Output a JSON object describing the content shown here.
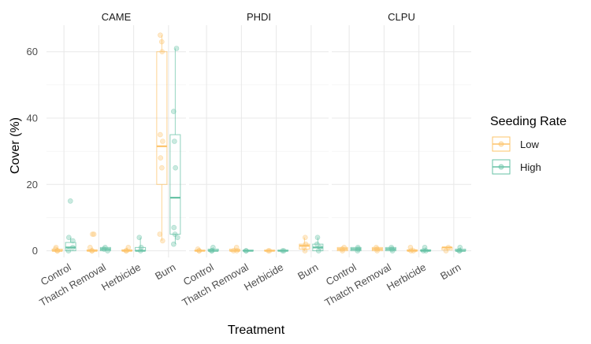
{
  "chart_data": {
    "type": "boxplot",
    "facets": [
      "CAME",
      "PHDI",
      "CLPU"
    ],
    "categories": [
      "Control",
      "Thatch Removal",
      "Herbicide",
      "Burn"
    ],
    "xlabel": "Treatment",
    "ylabel": "Cover (%)",
    "ylim": [
      -2,
      68
    ],
    "yticks": [
      0,
      20,
      40,
      60
    ],
    "grid": true,
    "legend": {
      "title": "Seeding Rate",
      "position": "right",
      "entries": [
        {
          "name": "Low",
          "color": "#FDC46B"
        },
        {
          "name": "High",
          "color": "#66C2A5"
        }
      ]
    },
    "series": [
      {
        "name": "Low",
        "color": "#FDC46B",
        "facets": {
          "CAME": [
            {
              "q1": 0,
              "median": 0,
              "q3": 0.5,
              "min": 0,
              "max": 1,
              "points": [
                0,
                0,
                0.5,
                1
              ]
            },
            {
              "q1": 0,
              "median": 0,
              "q3": 0.3,
              "min": 0,
              "max": 1,
              "points": [
                0,
                0,
                1,
                5,
                5
              ]
            },
            {
              "q1": 0,
              "median": 0,
              "q3": 0.3,
              "min": 0,
              "max": 1,
              "points": [
                0,
                0,
                1
              ]
            },
            {
              "q1": 20,
              "median": 31.5,
              "q3": 60,
              "min": 3,
              "max": 65,
              "points": [
                3,
                5,
                25,
                28,
                33,
                35,
                60,
                63,
                65
              ]
            }
          ],
          "PHDI": [
            {
              "q1": 0,
              "median": 0,
              "q3": 0.2,
              "min": 0,
              "max": 0.5,
              "points": [
                0,
                0,
                0.5
              ]
            },
            {
              "q1": 0,
              "median": 0,
              "q3": 0.5,
              "min": 0,
              "max": 1,
              "points": [
                0,
                0,
                1
              ]
            },
            {
              "q1": 0,
              "median": 0,
              "q3": 0.2,
              "min": 0,
              "max": 0.3,
              "points": [
                0,
                0
              ]
            },
            {
              "q1": 0.5,
              "median": 1.5,
              "q3": 2,
              "min": 0,
              "max": 4,
              "points": [
                0,
                1,
                2,
                4
              ]
            }
          ],
          "CLPU": [
            {
              "q1": 0,
              "median": 0.5,
              "q3": 1,
              "min": 0,
              "max": 1,
              "points": [
                0,
                0.5,
                1
              ]
            },
            {
              "q1": 0,
              "median": 0.5,
              "q3": 1,
              "min": 0,
              "max": 1,
              "points": [
                0,
                0.5,
                1
              ]
            },
            {
              "q1": 0,
              "median": 0,
              "q3": 0.3,
              "min": 0,
              "max": 1,
              "points": [
                0,
                0,
                1
              ]
            },
            {
              "q1": 0.3,
              "median": 1,
              "q3": 1,
              "min": 0,
              "max": 1,
              "points": [
                0,
                1
              ]
            }
          ]
        }
      },
      {
        "name": "High",
        "color": "#66C2A5",
        "facets": {
          "CAME": [
            {
              "q1": 0,
              "median": 1,
              "q3": 2.5,
              "min": 0,
              "max": 4,
              "points": [
                0,
                1,
                3,
                4,
                15
              ]
            },
            {
              "q1": 0,
              "median": 0.5,
              "q3": 1,
              "min": 0,
              "max": 1,
              "points": [
                0,
                0.5,
                1
              ]
            },
            {
              "q1": 0,
              "median": 0,
              "q3": 1,
              "min": 0,
              "max": 4,
              "points": [
                0,
                1,
                4
              ]
            },
            {
              "q1": 5,
              "median": 16,
              "q3": 35,
              "min": 2,
              "max": 61,
              "points": [
                2,
                4,
                5,
                7,
                25,
                33,
                42,
                61
              ]
            }
          ],
          "PHDI": [
            {
              "q1": 0,
              "median": 0,
              "q3": 0.5,
              "min": 0,
              "max": 1,
              "points": [
                0,
                0,
                1
              ]
            },
            {
              "q1": 0,
              "median": 0,
              "q3": 0.2,
              "min": 0,
              "max": 0.3,
              "points": [
                0,
                0
              ]
            },
            {
              "q1": 0,
              "median": 0,
              "q3": 0.2,
              "min": 0,
              "max": 0.3,
              "points": [
                0,
                0
              ]
            },
            {
              "q1": 0,
              "median": 1,
              "q3": 2,
              "min": 0,
              "max": 4,
              "points": [
                0,
                1,
                2,
                4
              ]
            }
          ],
          "CLPU": [
            {
              "q1": 0,
              "median": 0.5,
              "q3": 1,
              "min": 0,
              "max": 1,
              "points": [
                0,
                0.5,
                1
              ]
            },
            {
              "q1": 0,
              "median": 0.5,
              "q3": 1,
              "min": 0,
              "max": 1,
              "points": [
                0,
                0.5,
                1
              ]
            },
            {
              "q1": 0,
              "median": 0,
              "q3": 0.3,
              "min": 0,
              "max": 1,
              "points": [
                0,
                0,
                1
              ]
            },
            {
              "q1": 0,
              "median": 0,
              "q3": 0.5,
              "min": 0,
              "max": 1,
              "points": [
                0,
                0,
                1
              ]
            }
          ]
        }
      }
    ]
  }
}
